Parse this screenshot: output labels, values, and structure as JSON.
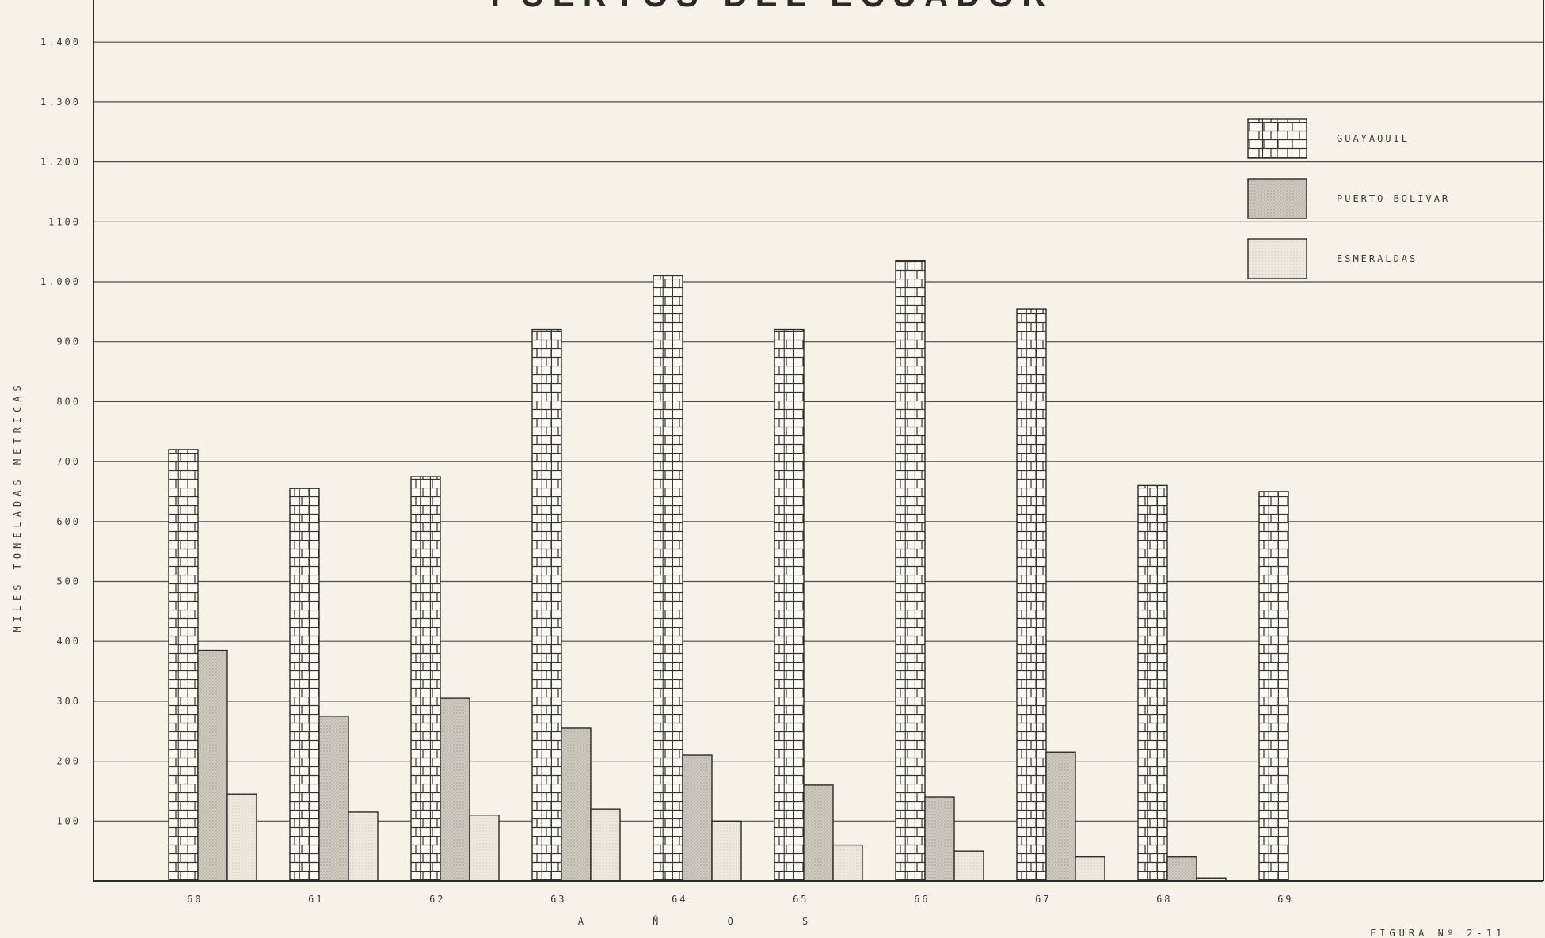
{
  "chart_data": {
    "type": "bar",
    "title": "PUERTOS DEL ECUADOR",
    "ylabel": "MILES TONELADAS METRICAS",
    "xlabel": "A Ñ O S",
    "ylim": [
      0,
      1400
    ],
    "yticks": [
      {
        "value": 100,
        "label": "100"
      },
      {
        "value": 200,
        "label": "200"
      },
      {
        "value": 300,
        "label": "300"
      },
      {
        "value": 400,
        "label": "400"
      },
      {
        "value": 500,
        "label": "500"
      },
      {
        "value": 600,
        "label": "600"
      },
      {
        "value": 700,
        "label": "700"
      },
      {
        "value": 800,
        "label": "800"
      },
      {
        "value": 900,
        "label": "900"
      },
      {
        "value": 1000,
        "label": "1.000"
      },
      {
        "value": 1100,
        "label": "1100"
      },
      {
        "value": 1200,
        "label": "1.200"
      },
      {
        "value": 1300,
        "label": "1.300"
      },
      {
        "value": 1400,
        "label": "1.400"
      }
    ],
    "categories": [
      "60",
      "61",
      "62",
      "63",
      "64",
      "65",
      "66",
      "67",
      "68",
      "69"
    ],
    "series": [
      {
        "name": "GUAYAQUIL",
        "pattern": "brick",
        "values": [
          720,
          655,
          675,
          920,
          1010,
          920,
          1035,
          955,
          660,
          650
        ]
      },
      {
        "name": "PUERTO BOLIVAR",
        "pattern": "dense-dot",
        "values": [
          385,
          275,
          305,
          255,
          210,
          160,
          140,
          215,
          40,
          0
        ]
      },
      {
        "name": "ESMERALDAS",
        "pattern": "light-dot",
        "values": [
          145,
          115,
          110,
          120,
          100,
          60,
          50,
          40,
          5,
          0
        ]
      }
    ],
    "grid": true,
    "legend_position": "top-right",
    "figure_label": "FIGURA Nº 2-11"
  },
  "colors": {
    "paper": "#f6f2e7",
    "ink": "#2a2a2a",
    "grid": "#4a4a4a",
    "bar_white": "#fbf9f2",
    "dense_fill": "#cfcac0",
    "light_fill": "#e9e5da"
  }
}
